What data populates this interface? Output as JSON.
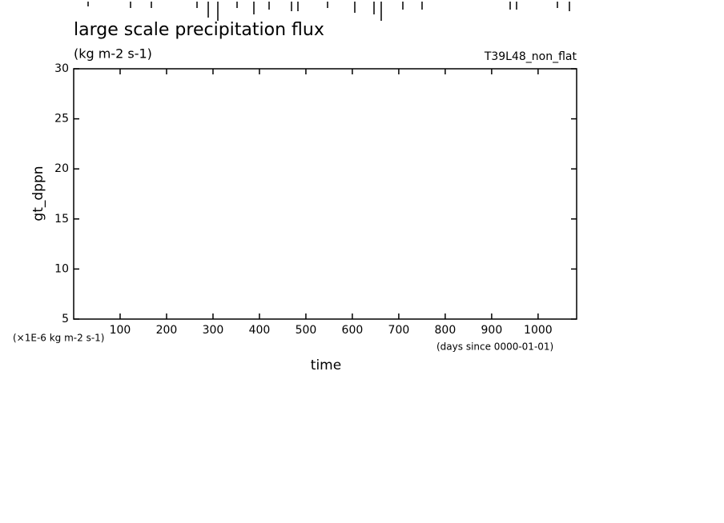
{
  "chart_data": {
    "type": "line",
    "title": "large scale precipitation flux",
    "subtitle": "(kg m-2 s-1)",
    "experiment": "T39L48_non_flat",
    "y_label": "gt_dppn",
    "y_units": "(×1E-6 kg m-2 s-1)",
    "x_label": "time",
    "x_units": "(days since 0000-01-01)",
    "xlim": [
      0,
      1083
    ],
    "xticks": [
      100,
      200,
      300,
      400,
      500,
      600,
      700,
      800,
      900,
      1000
    ],
    "ylim": [
      5,
      30
    ],
    "yticks": [
      5,
      10,
      15,
      20,
      25,
      30
    ]
  }
}
